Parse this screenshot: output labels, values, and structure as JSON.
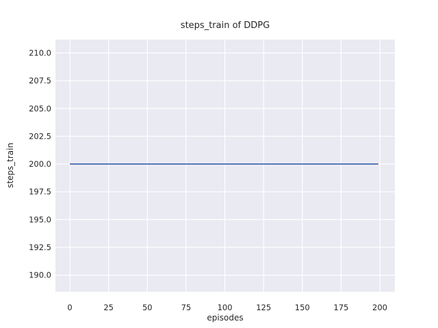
{
  "figure": {
    "background": "#FFFFFF",
    "text_color": "#262626"
  },
  "chart_data": {
    "type": "line",
    "title": "steps_train of DDPG",
    "xlabel": "episodes",
    "ylabel": "steps_train",
    "x_ticks": [
      0,
      25,
      50,
      75,
      100,
      125,
      150,
      175,
      200
    ],
    "y_ticks": [
      "190.0",
      "192.5",
      "195.0",
      "197.5",
      "200.0",
      "202.5",
      "205.0",
      "207.5",
      "210.0"
    ],
    "xlim": [
      -9.3,
      209.7
    ],
    "ylim": [
      188.5,
      211.2
    ],
    "grid": true,
    "legend": false,
    "plot_background": "#EAEAF2",
    "grid_color": "#FFFFFF",
    "series": [
      {
        "name": "steps_train",
        "color": "#4C72B0",
        "x": [
          0,
          199
        ],
        "y": [
          200,
          200
        ],
        "note": "constant value 200 across all episodes 0-199"
      }
    ]
  }
}
